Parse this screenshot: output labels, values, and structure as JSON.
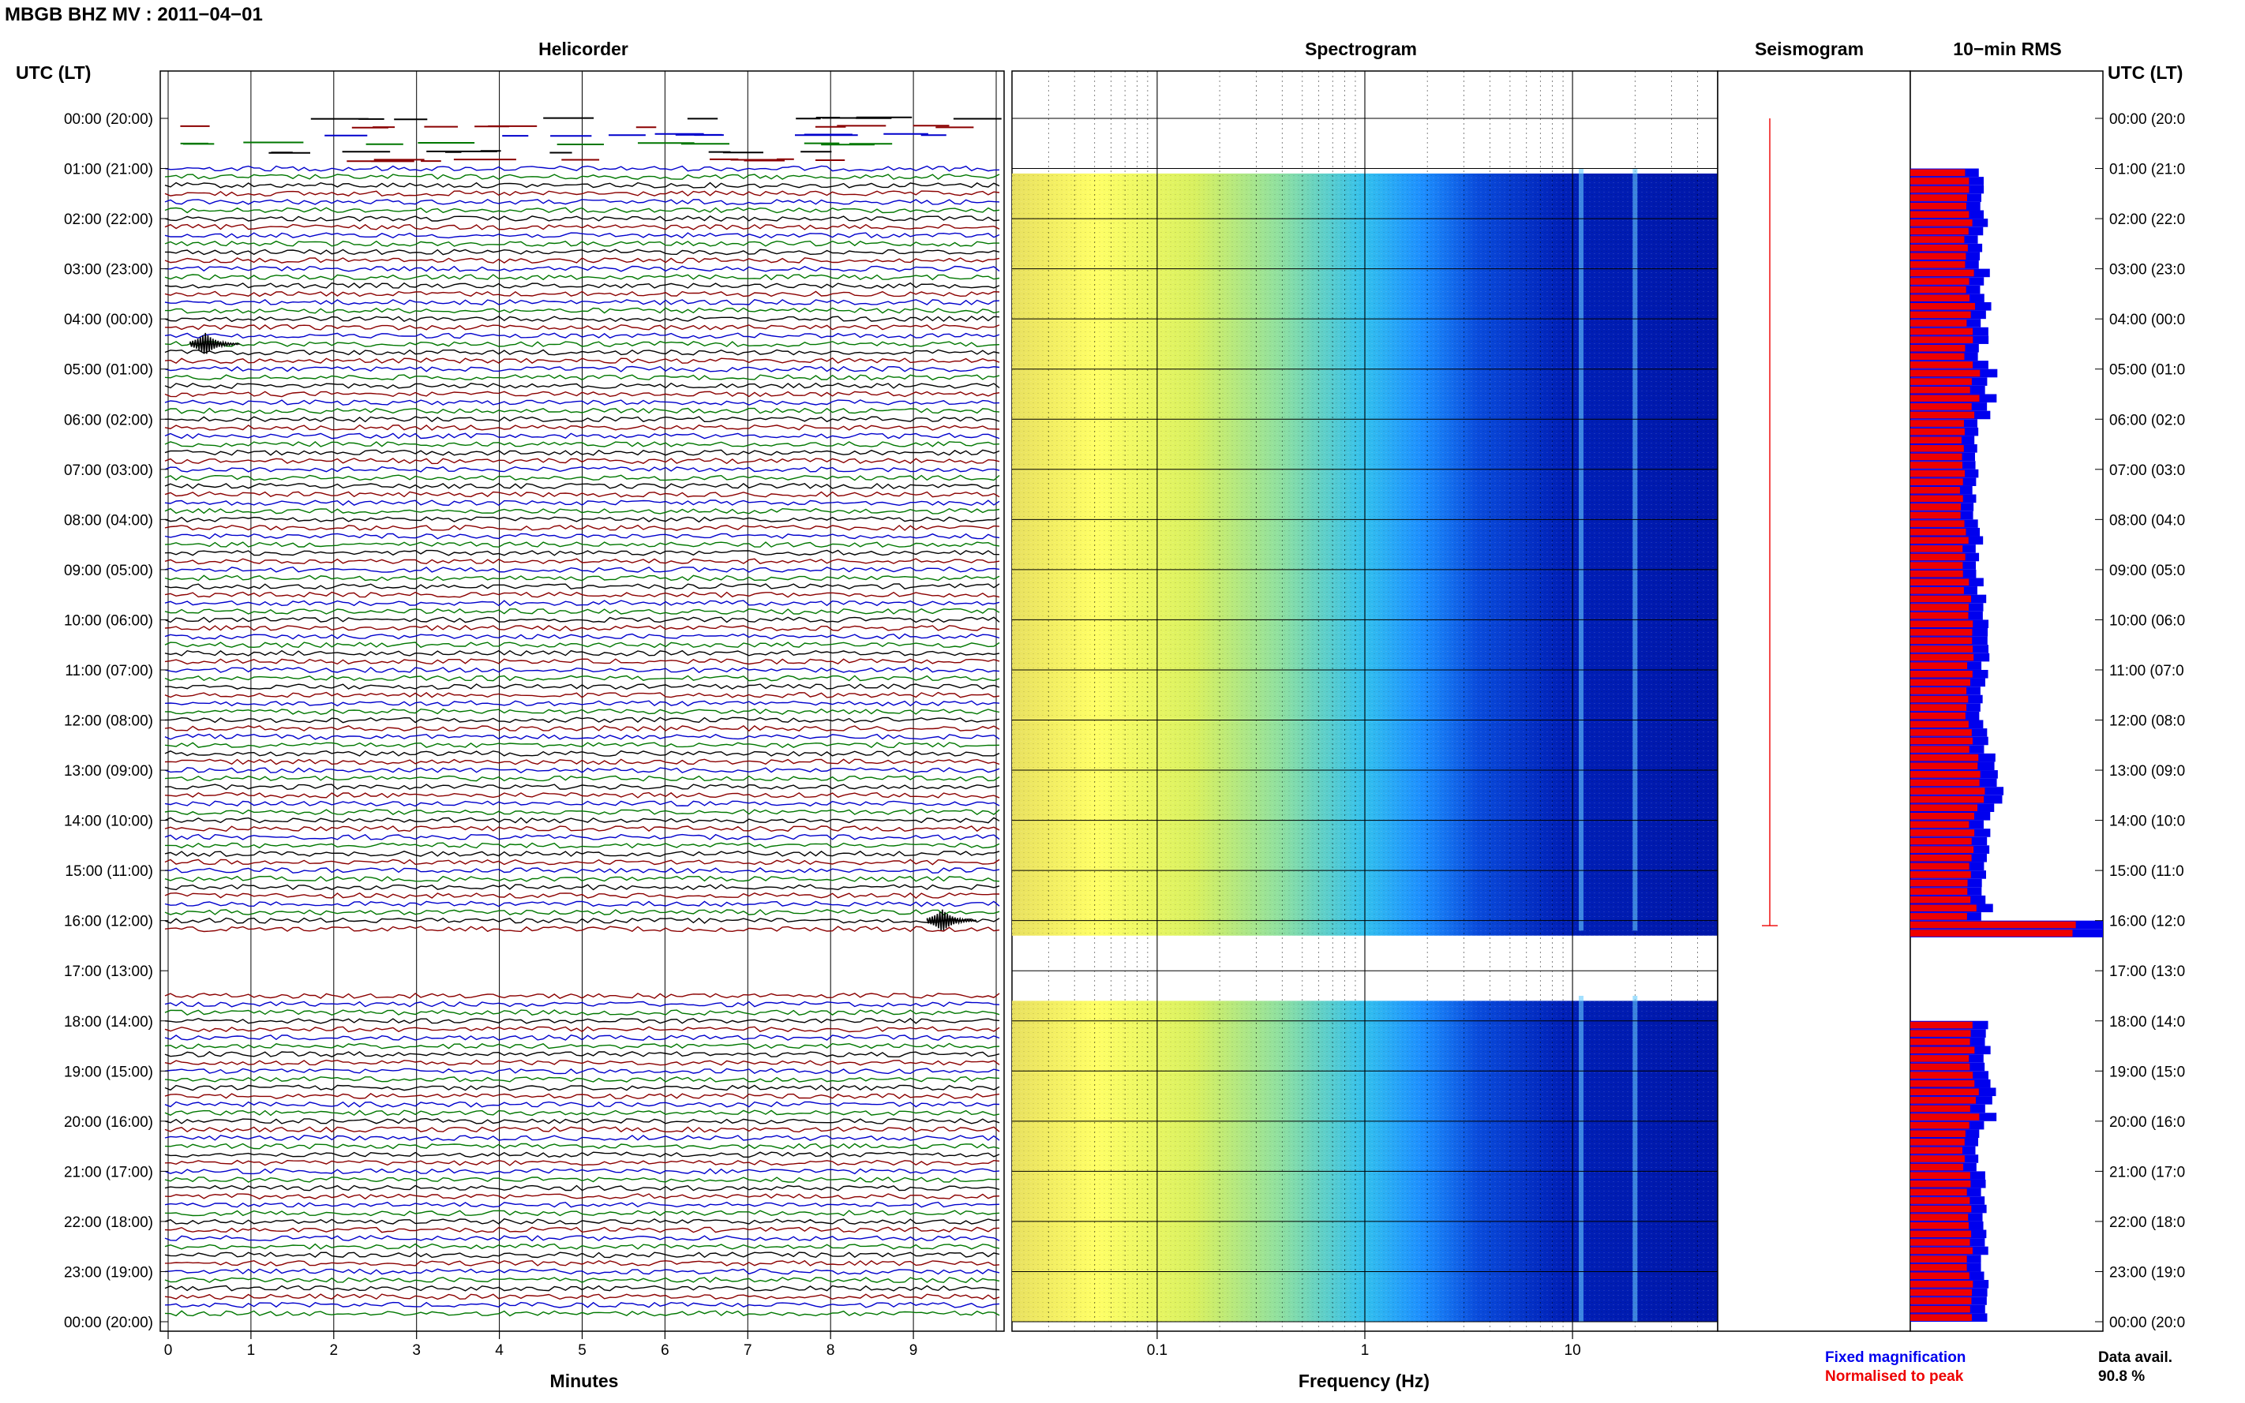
{
  "header": {
    "station": "MBGB BHZ MV : 2011−04−01"
  },
  "panels": {
    "helicorder": "Helicorder",
    "spectrogram": "Spectrogram",
    "seismogram": "Seismogram",
    "rms": "10−min RMS"
  },
  "time_axis_label": "UTC (LT)",
  "time_labels": [
    "00:00 (20:00)",
    "01:00 (21:00)",
    "02:00 (22:00)",
    "03:00 (23:00)",
    "04:00 (00:00)",
    "05:00 (01:00)",
    "06:00 (02:00)",
    "07:00 (03:00)",
    "08:00 (04:00)",
    "09:00 (05:00)",
    "10:00 (06:00)",
    "11:00 (07:00)",
    "12:00 (08:00)",
    "13:00 (09:00)",
    "14:00 (10:00)",
    "15:00 (11:00)",
    "16:00 (12:00)",
    "17:00 (13:00)",
    "18:00 (14:00)",
    "19:00 (15:00)",
    "20:00 (16:00)",
    "21:00 (17:00)",
    "22:00 (18:00)",
    "23:00 (19:00)",
    "00:00 (20:00)"
  ],
  "time_labels_right": [
    "00:00 (20:0",
    "01:00 (21:0",
    "02:00 (22:0",
    "03:00 (23:0",
    "04:00 (00:0",
    "05:00 (01:0",
    "06:00 (02:0",
    "07:00 (03:0",
    "08:00 (04:0",
    "09:00 (05:0",
    "10:00 (06:0",
    "11:00 (07:0",
    "12:00 (08:0",
    "13:00 (09:0",
    "14:00 (10:0",
    "15:00 (11:0",
    "16:00 (12:0",
    "17:00 (13:0",
    "18:00 (14:0",
    "19:00 (15:0",
    "20:00 (16:0",
    "21:00 (17:0",
    "22:00 (18:0",
    "23:00 (19:0",
    "00:00 (20:0"
  ],
  "x_axis_minutes": {
    "label": "Minutes",
    "ticks": [
      "0",
      "1",
      "2",
      "3",
      "4",
      "5",
      "6",
      "7",
      "8",
      "9"
    ]
  },
  "x_axis_frequency": {
    "label": "Frequency (Hz)",
    "ticks": [
      "0.1",
      "1",
      "10"
    ]
  },
  "legend": {
    "fixed": "Fixed magnification",
    "normalised": "Normalised to peak",
    "fixed_color": "#0000ee",
    "normalised_color": "#ee0000"
  },
  "data_avail": {
    "label": "Data avail.",
    "value": "90.8 %"
  },
  "colors": {
    "trace_cycle": [
      "#000000",
      "#8b0000",
      "#0000cc",
      "#007700"
    ],
    "spectrogram_low": "#00008b",
    "spectrogram_high": "#ffff66",
    "rms_fixed": "#0000ee",
    "rms_normalised": "#ee0000"
  },
  "chart_data": [
    {
      "type": "line",
      "name": "helicorder",
      "title": "Helicorder",
      "xlabel": "Minutes",
      "xlim": [
        0,
        10
      ],
      "ylim_hours_utc": [
        0,
        24
      ],
      "lines_per_hour": 6,
      "data_gaps_hours": [
        [
          0.0,
          1.0
        ],
        [
          16.2,
          17.5
        ]
      ],
      "events": [
        {
          "hour": 4.5,
          "minute": 0.4,
          "note": ""
        },
        {
          "hour": 16.0,
          "minute": 9.3,
          "note": ""
        }
      ]
    },
    {
      "type": "heatmap",
      "name": "spectrogram",
      "title": "Spectrogram",
      "xlabel": "Frequency (Hz)",
      "x_scale": "log",
      "xlim_hz": [
        0.02,
        50
      ],
      "data_gaps_hours": [
        [
          0.0,
          1.0
        ],
        [
          16.2,
          17.5
        ]
      ],
      "colormap": [
        "#00008b",
        "#0055ff",
        "#00ccff",
        "#ffff66"
      ]
    },
    {
      "type": "line",
      "name": "seismogram",
      "title": "Seismogram",
      "color": "#ee0000"
    },
    {
      "type": "bar",
      "name": "rms",
      "title": "10−min RMS",
      "orientation": "horizontal",
      "ylim_hours_utc": [
        0,
        24
      ],
      "series": [
        {
          "name": "Fixed magnification",
          "color": "#0000ee"
        },
        {
          "name": "Normalised to peak",
          "color": "#ee0000"
        }
      ],
      "hourly_fixed_relative": [
        null,
        0.36,
        0.38,
        0.39,
        0.38,
        0.42,
        0.33,
        0.35,
        0.36,
        0.37,
        0.4,
        0.38,
        0.41,
        0.45,
        0.4,
        0.4,
        1.0,
        null,
        0.4,
        0.42,
        0.36,
        0.37,
        0.38,
        0.4
      ]
    }
  ]
}
